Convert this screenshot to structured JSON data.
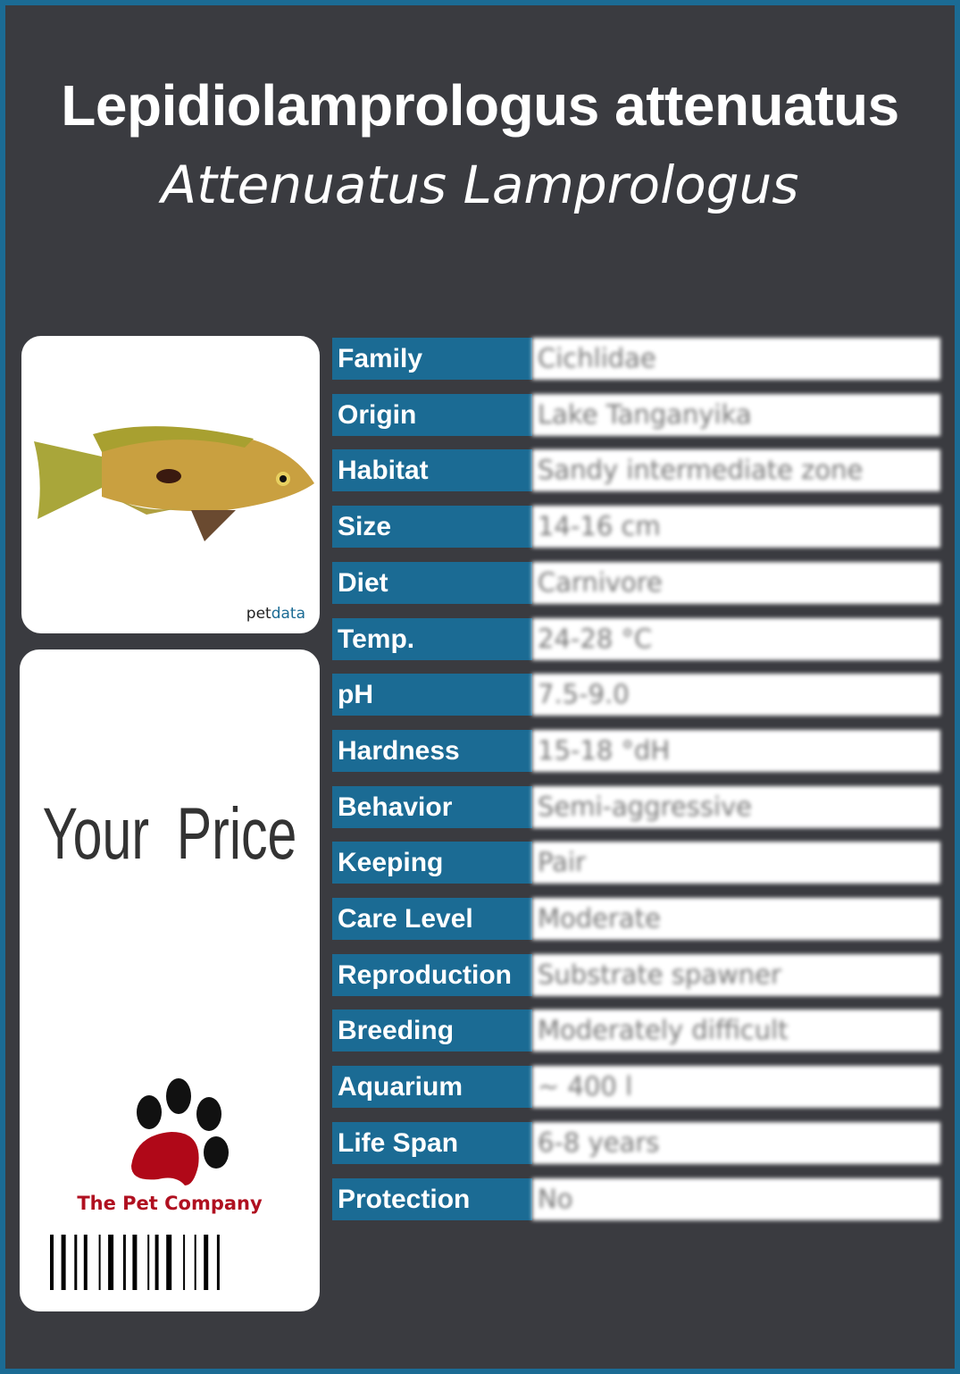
{
  "header": {
    "scientific_name": "Lepidiolamprologus attenuatus",
    "common_name": "Attenuatus Lamprologus"
  },
  "image_card": {
    "logo_part1": "pet",
    "logo_part2": "data"
  },
  "price_card": {
    "price_label": "Your Price",
    "company": "The Pet Company"
  },
  "colors": {
    "accent": "#1b6b94",
    "background": "#3a3b40",
    "company_red": "#b01020"
  },
  "facts": [
    {
      "label": "Family",
      "value": "Cichlidae"
    },
    {
      "label": "Origin",
      "value": "Lake Tanganyika"
    },
    {
      "label": "Habitat",
      "value": "Sandy intermediate zone"
    },
    {
      "label": "Size",
      "value": "14-16 cm"
    },
    {
      "label": "Diet",
      "value": "Carnivore"
    },
    {
      "label": "Temp.",
      "value": "24-28 °C"
    },
    {
      "label": "pH",
      "value": "7.5-9.0"
    },
    {
      "label": "Hardness",
      "value": "15-18 °dH"
    },
    {
      "label": "Behavior",
      "value": "Semi-aggressive"
    },
    {
      "label": "Keeping",
      "value": "Pair"
    },
    {
      "label": "Care Level",
      "value": "Moderate"
    },
    {
      "label": "Reproduction",
      "value": "Substrate spawner"
    },
    {
      "label": "Breeding",
      "value": "Moderately difficult"
    },
    {
      "label": "Aquarium",
      "value": "~ 400 l"
    },
    {
      "label": "Life Span",
      "value": "6-8 years"
    },
    {
      "label": "Protection",
      "value": "No"
    }
  ]
}
